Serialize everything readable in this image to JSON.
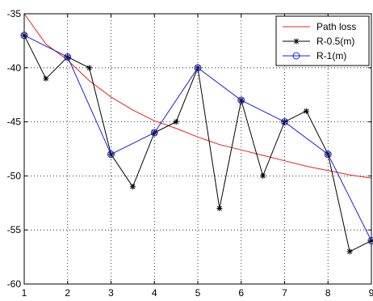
{
  "chart_data": {
    "type": "line",
    "title": "",
    "xlabel": "",
    "ylabel": "",
    "xlim": [
      1,
      9
    ],
    "ylim": [
      -60,
      -35
    ],
    "x_ticks": [
      1,
      2,
      3,
      4,
      5,
      6,
      7,
      8,
      9
    ],
    "y_ticks": [
      -35,
      -40,
      -45,
      -50,
      -55,
      -60
    ],
    "x_tick_labels": [
      "1",
      "2",
      "3",
      "4",
      "5",
      "6",
      "7",
      "8",
      "9"
    ],
    "y_tick_labels": [
      "-35",
      "-40",
      "-45",
      "-50",
      "-55",
      "-60"
    ],
    "grid": true,
    "legend_position": "top-right",
    "series": [
      {
        "name": "Path loss",
        "color": "#e8201c",
        "marker": "none",
        "x": [
          1,
          1.5,
          2,
          2.5,
          3,
          3.5,
          4,
          4.5,
          5,
          5.5,
          6,
          6.5,
          7,
          7.5,
          8,
          8.5,
          9
        ],
        "y": [
          -35,
          -37.8,
          -39.3,
          -41.2,
          -42.7,
          -43.9,
          -44.9,
          -45.6,
          -46.4,
          -47.1,
          -47.6,
          -48.1,
          -48.6,
          -49.1,
          -49.5,
          -49.9,
          -50.2
        ]
      },
      {
        "name": "R-0.5(m)",
        "color": "#000000",
        "marker": "star",
        "x": [
          1,
          1.5,
          2,
          2.5,
          3,
          3.5,
          4,
          4.5,
          5,
          5.5,
          6,
          6.5,
          7,
          7.5,
          8,
          8.5,
          9
        ],
        "y": [
          -37,
          -41,
          -39,
          -40,
          -48,
          -51,
          -46,
          -45,
          -40,
          -53,
          -43,
          -50,
          -45,
          -44,
          -48,
          -57,
          -56
        ]
      },
      {
        "name": "R-1(m)",
        "color": "#1f1fd8",
        "marker": "circle",
        "x": [
          1,
          2,
          3,
          4,
          5,
          6,
          7,
          8,
          9
        ],
        "y": [
          -37,
          -39,
          -48,
          -46,
          -40,
          -43,
          -45,
          -48,
          -56
        ]
      }
    ]
  }
}
